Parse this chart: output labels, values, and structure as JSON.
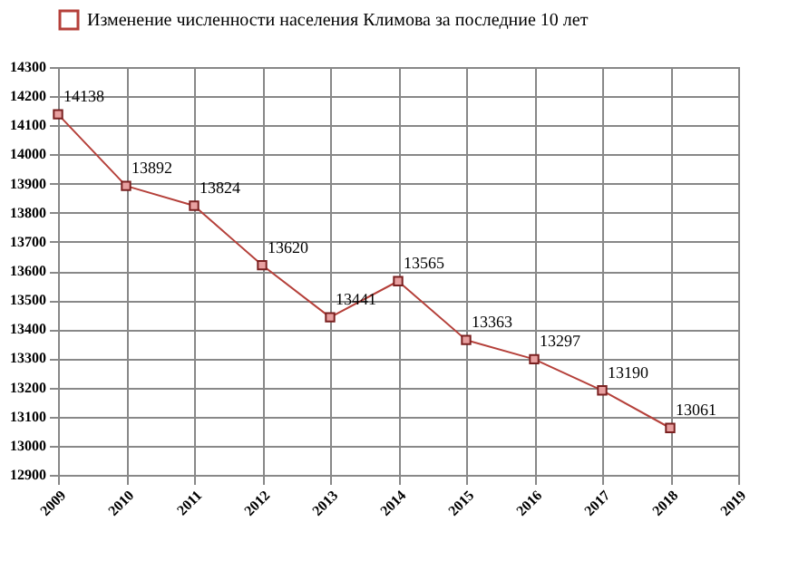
{
  "chart_data": {
    "type": "line",
    "x": [
      2009,
      2010,
      2011,
      2012,
      2013,
      2014,
      2015,
      2016,
      2017,
      2018
    ],
    "series": [
      {
        "name": "Изменение численности населения Климова за последние 10 лет",
        "color": "#b5403a",
        "values": [
          14138,
          13892,
          13824,
          13620,
          13441,
          13565,
          13363,
          13297,
          13190,
          13061
        ]
      }
    ],
    "xlim": [
      2009,
      2019
    ],
    "xticks": [
      2009,
      2010,
      2011,
      2012,
      2013,
      2014,
      2015,
      2016,
      2017,
      2018,
      2019
    ],
    "ylim": [
      12900,
      14300
    ],
    "yticks": [
      12900,
      13000,
      13100,
      13200,
      13300,
      13400,
      13500,
      13600,
      13700,
      13800,
      13900,
      14000,
      14100,
      14200,
      14300
    ],
    "grid": true,
    "legend": "top",
    "marker": "square",
    "line_style": "solid",
    "data_labels": true
  }
}
